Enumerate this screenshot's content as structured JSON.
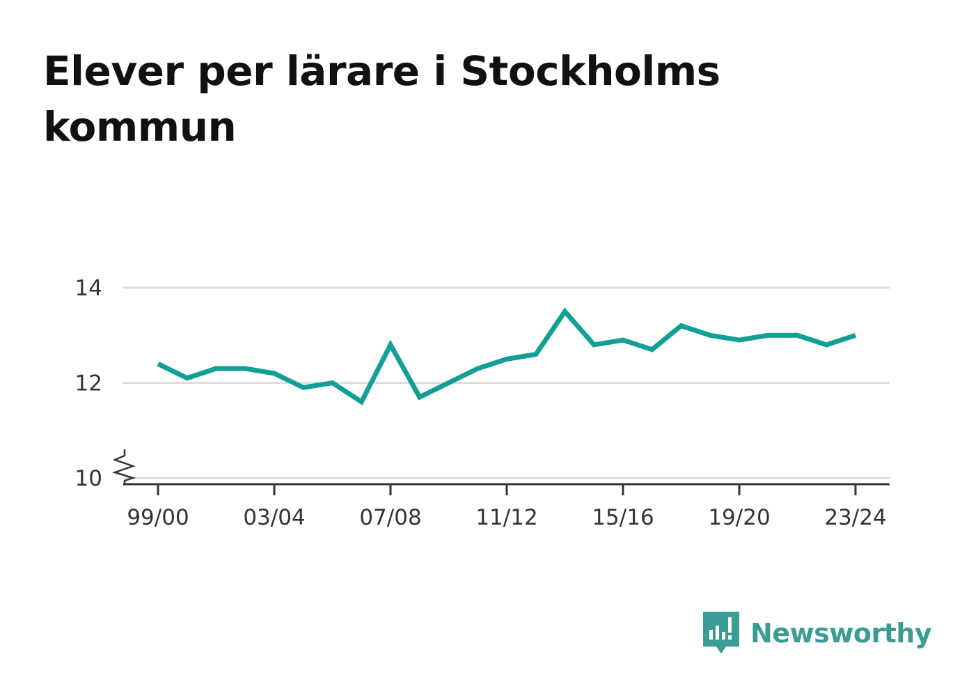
{
  "title": "Elever per lärare i Stockholms kommun",
  "brand": {
    "name": "Newsworthy",
    "icon": "bar-chart-speech-bubble-icon",
    "color": "#3a9c94"
  },
  "colors": {
    "line": "#12a096",
    "grid": "#dddddd",
    "axis": "#333333",
    "text": "#333333"
  },
  "chart_data": {
    "type": "line",
    "title": "Elever per lärare i Stockholms kommun",
    "xlabel": "",
    "ylabel": "",
    "ylim": [
      10,
      14
    ],
    "y_axis_break": true,
    "grid": true,
    "legend": "none",
    "yticks": [
      10,
      12,
      14
    ],
    "xtick_labels": [
      "99/00",
      "03/04",
      "07/08",
      "11/12",
      "15/16",
      "19/20",
      "23/24"
    ],
    "categories": [
      "99/00",
      "00/01",
      "01/02",
      "02/03",
      "03/04",
      "04/05",
      "05/06",
      "06/07",
      "07/08",
      "08/09",
      "09/10",
      "10/11",
      "11/12",
      "12/13",
      "13/14",
      "14/15",
      "15/16",
      "16/17",
      "17/18",
      "18/19",
      "19/20",
      "20/21",
      "21/22",
      "22/23",
      "23/24"
    ],
    "series": [
      {
        "values": [
          12.4,
          12.1,
          12.3,
          12.3,
          12.2,
          11.9,
          12.0,
          11.6,
          12.8,
          11.7,
          12.0,
          12.3,
          12.5,
          12.6,
          13.5,
          12.8,
          12.9,
          12.7,
          13.2,
          13.0,
          12.9,
          13.0,
          13.0,
          12.8,
          13.0
        ]
      }
    ]
  }
}
